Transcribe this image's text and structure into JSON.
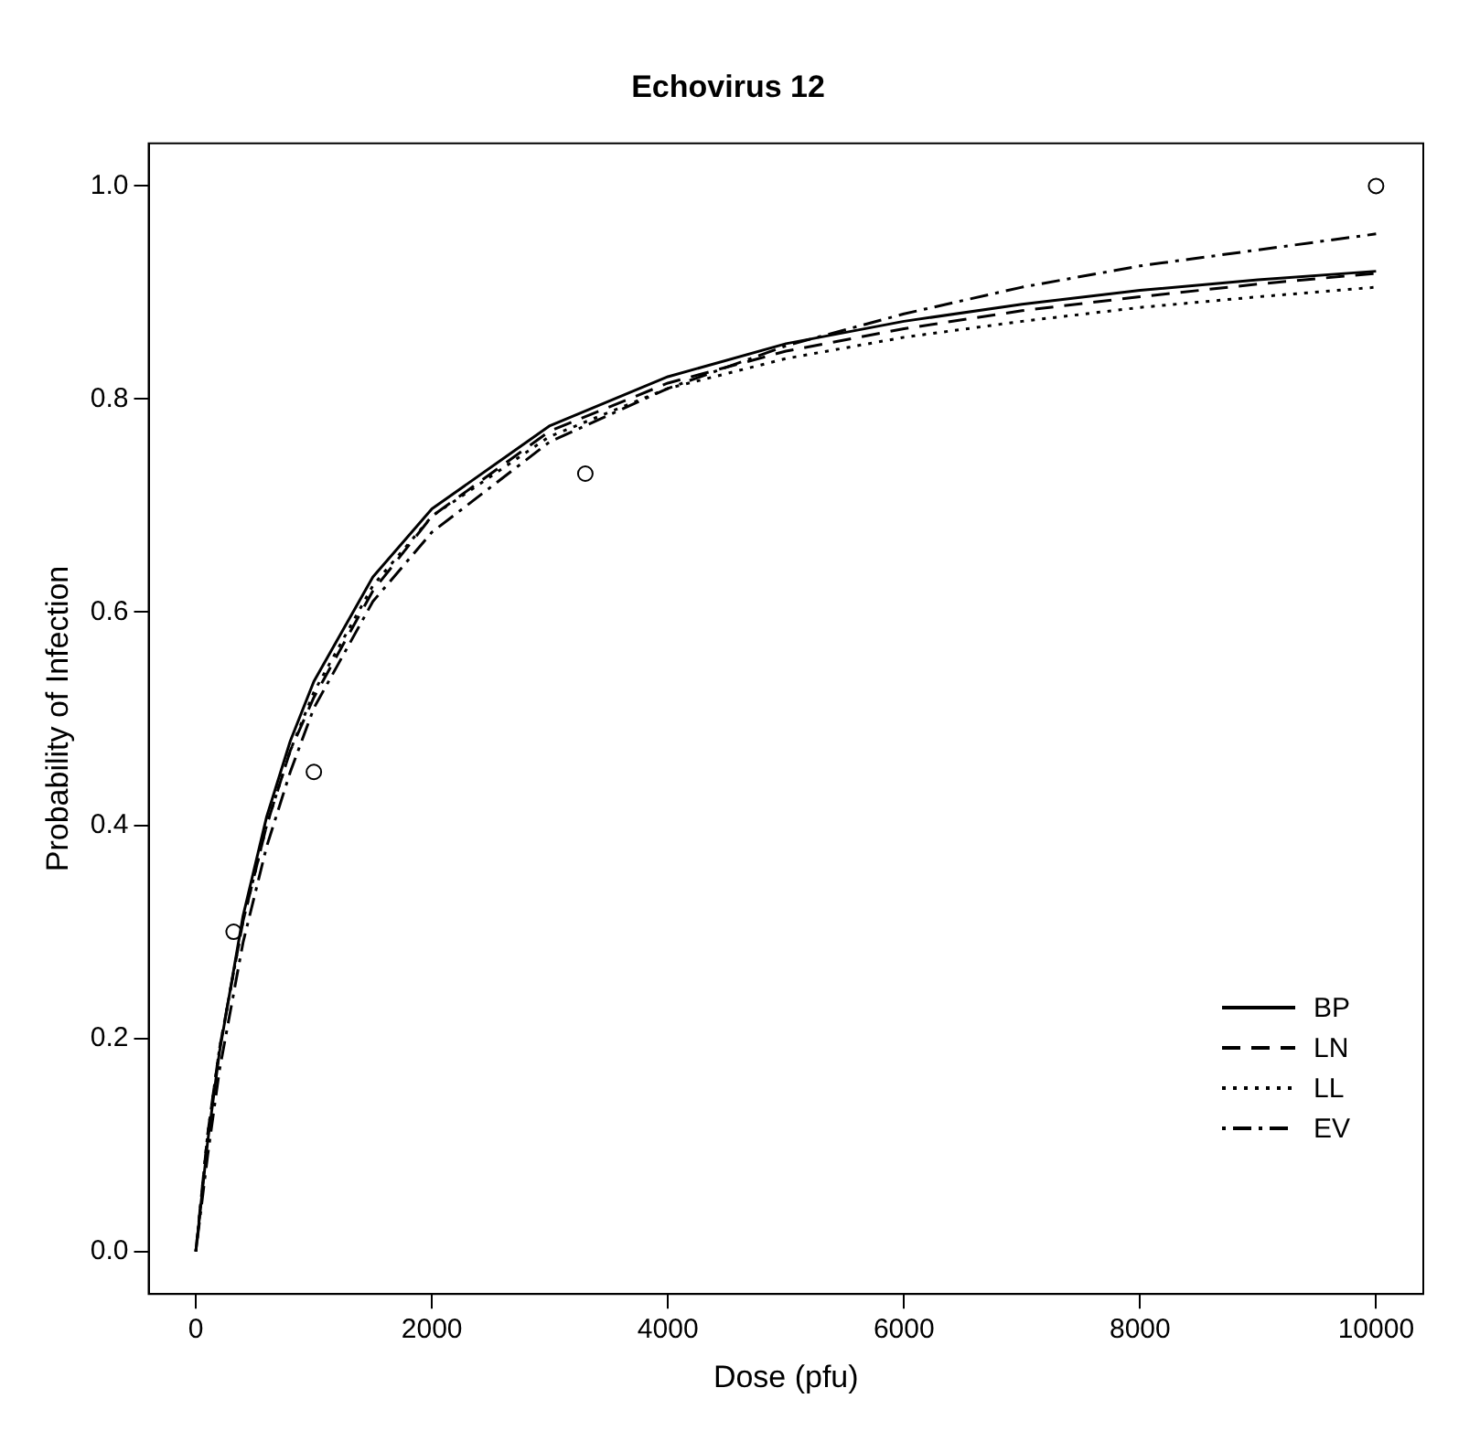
{
  "chart_data": {
    "type": "line",
    "title": "Echovirus 12",
    "xlabel": "Dose (pfu)",
    "ylabel": "Probability of Infection",
    "x": [
      0,
      100,
      200,
      400,
      600,
      800,
      1000,
      1500,
      2000,
      3000,
      4000,
      5000,
      6000,
      7000,
      8000,
      9000,
      10000
    ],
    "xlim": [
      -400,
      10400
    ],
    "xticks": [
      0,
      2000,
      4000,
      6000,
      8000,
      10000
    ],
    "ylim": [
      -0.04,
      1.04
    ],
    "yticks": [
      {
        "value": 0,
        "label": "0.0"
      },
      0.2,
      0.4,
      0.6,
      0.8,
      {
        "value": 1,
        "label": "1.0"
      }
    ],
    "grid": false,
    "legend": "bottom right",
    "marker": "none",
    "series": [
      {
        "name": "BP",
        "color": "#000000",
        "line_style": "solid",
        "values": [
          0,
          0.103,
          0.187,
          0.315,
          0.408,
          0.479,
          0.535,
          0.633,
          0.697,
          0.775,
          0.821,
          0.852,
          0.873,
          0.889,
          0.902,
          0.912,
          0.92
        ]
      },
      {
        "name": "LN",
        "color": "#000000",
        "line_style": "dashed",
        "values": [
          0,
          0.11,
          0.19,
          0.31,
          0.4,
          0.47,
          0.52,
          0.62,
          0.69,
          0.77,
          0.815,
          0.845,
          0.866,
          0.883,
          0.896,
          0.908,
          0.918
        ]
      },
      {
        "name": "LL",
        "color": "#000000",
        "line_style": "dotted",
        "values": [
          0,
          0.11,
          0.19,
          0.31,
          0.4,
          0.47,
          0.525,
          0.625,
          0.69,
          0.765,
          0.81,
          0.838,
          0.858,
          0.873,
          0.886,
          0.896,
          0.905
        ]
      },
      {
        "name": "EV",
        "color": "#000000",
        "line_style": "dashdot",
        "values": [
          0,
          0.09,
          0.17,
          0.29,
          0.38,
          0.45,
          0.51,
          0.61,
          0.675,
          0.76,
          0.81,
          0.85,
          0.88,
          0.905,
          0.925,
          0.94,
          0.955
        ]
      },
      {
        "type": "scatter",
        "color": "#000000",
        "marker": "circle",
        "x": [
          320,
          1000,
          3300,
          10000
        ],
        "values": [
          0.3,
          0.45,
          0.73,
          1
        ]
      }
    ]
  }
}
